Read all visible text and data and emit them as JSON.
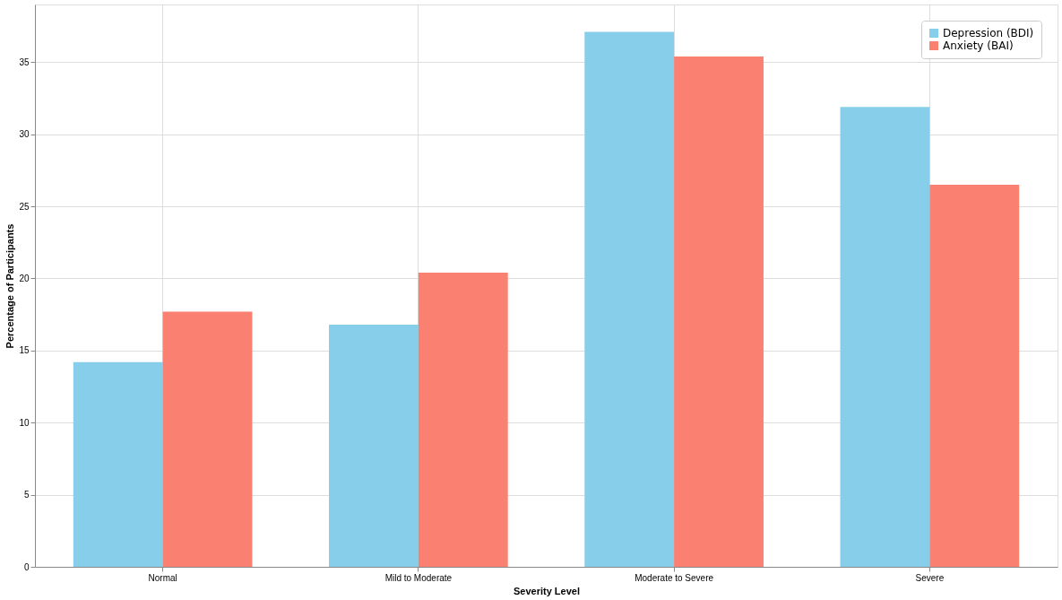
{
  "chart_data": {
    "type": "bar",
    "xlabel": "Severity Level",
    "ylabel": "Percentage of Participants",
    "categories": [
      "Normal",
      "Mild to Moderate",
      "Moderate to Severe",
      "Severe"
    ],
    "series": [
      {
        "name": "Depression (BDI)",
        "color": "#87ceeb",
        "values": [
          14.2,
          16.8,
          37.1,
          31.9
        ]
      },
      {
        "name": "Anxiety (BAI)",
        "color": "#fa8072",
        "values": [
          17.7,
          20.4,
          35.4,
          26.5
        ]
      }
    ],
    "ylim": [
      0,
      39
    ],
    "yticks": [
      0,
      5,
      10,
      15,
      20,
      25,
      30,
      35
    ],
    "grid": true,
    "legend": "top right"
  }
}
